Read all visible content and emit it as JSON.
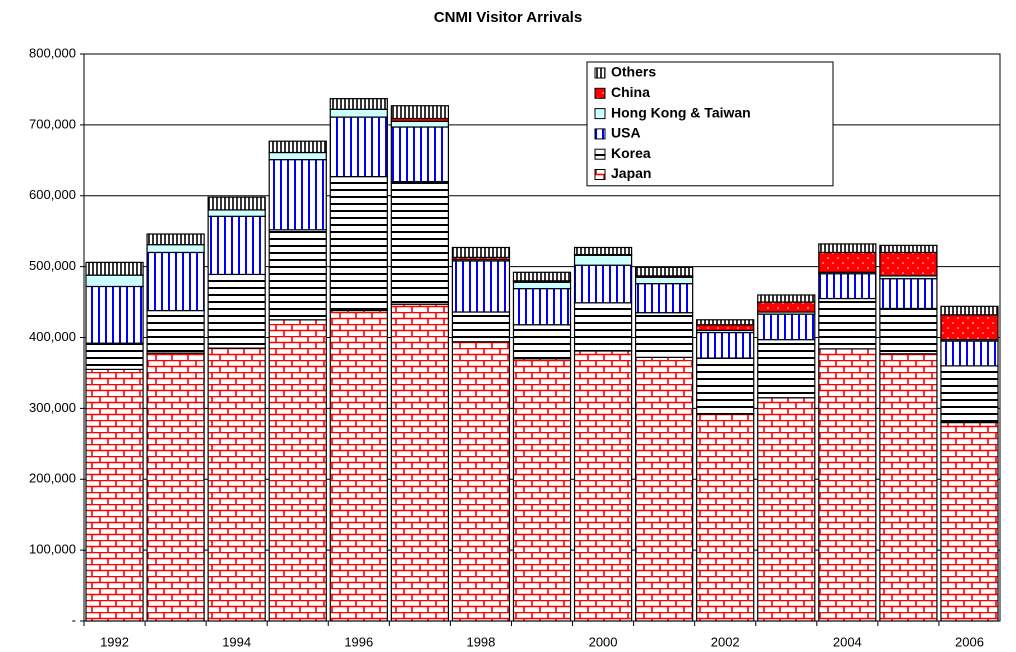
{
  "chart_data": {
    "type": "stacked_bar",
    "title": "CNMI Visitor Arrivals",
    "categories": [
      "1992",
      null,
      "1994",
      null,
      "1996",
      null,
      "1998",
      null,
      "2000",
      null,
      "2002",
      null,
      "2004",
      null,
      "2006"
    ],
    "series": [
      {
        "name": "Japan",
        "color": "#ff0000",
        "pattern": "brick",
        "values": [
          355000,
          378000,
          385000,
          425000,
          438000,
          447000,
          394000,
          370000,
          381000,
          372000,
          292000,
          315000,
          384000,
          377000,
          280000
        ]
      },
      {
        "name": "Korea",
        "color": "#000000",
        "pattern": "horizontal",
        "values": [
          37000,
          60000,
          104000,
          127000,
          189000,
          173000,
          42000,
          48000,
          68000,
          63000,
          79000,
          82000,
          71000,
          64000,
          80000
        ]
      },
      {
        "name": "USA",
        "color": "#0000ff",
        "pattern": "vertical",
        "values": [
          80000,
          82000,
          82000,
          99000,
          84000,
          77000,
          72000,
          51000,
          53000,
          41000,
          36000,
          36000,
          35000,
          42000,
          35000
        ]
      },
      {
        "name": "Hong Kong & Taiwan",
        "color": "#ccffff",
        "pattern": "solid",
        "values": [
          16000,
          11000,
          9000,
          10000,
          11000,
          8000,
          2000,
          9000,
          14000,
          9000,
          3000,
          3000,
          2000,
          4000,
          2000
        ]
      },
      {
        "name": "China",
        "color": "#ff0000",
        "pattern": "dots",
        "values": [
          0,
          0,
          0,
          0,
          0,
          4000,
          3000,
          2000,
          1000,
          2000,
          8000,
          14000,
          28000,
          33000,
          35000
        ]
      },
      {
        "name": "Others",
        "color": "#000000",
        "pattern": "stripes",
        "values": [
          18000,
          15000,
          18000,
          16000,
          15000,
          18000,
          14000,
          12000,
          10000,
          12000,
          7000,
          10000,
          12000,
          10000,
          12000
        ]
      }
    ],
    "ylim": [
      0,
      800000
    ],
    "yticks": [
      {
        "value": 0,
        "label": "-"
      },
      {
        "value": 100000,
        "label": "100,000"
      },
      {
        "value": 200000,
        "label": "200,000"
      },
      {
        "value": 300000,
        "label": "300,000"
      },
      {
        "value": 400000,
        "label": "400,000"
      },
      {
        "value": 500000,
        "label": "500,000"
      },
      {
        "value": 600000,
        "label": "600,000"
      },
      {
        "value": 700000,
        "label": "700,000"
      },
      {
        "value": 800000,
        "label": "800,000"
      }
    ],
    "grid": true,
    "legend": "top-right"
  }
}
